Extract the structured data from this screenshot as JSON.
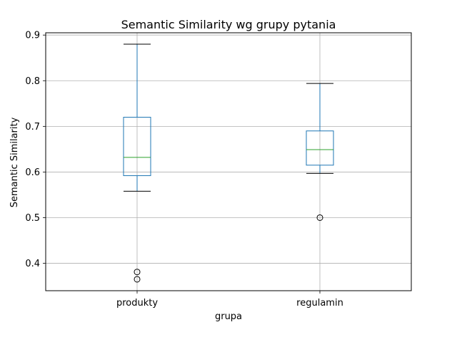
{
  "chart_data": {
    "type": "box",
    "title": "Semantic Similarity wg grupy pytania",
    "xlabel": "grupa",
    "ylabel": "Semantic Similarity",
    "ylim": [
      0.34,
      0.905
    ],
    "yticks": [
      0.4,
      0.5,
      0.6,
      0.7,
      0.8,
      0.9
    ],
    "ytick_labels": [
      "0.4",
      "0.5",
      "0.6",
      "0.7",
      "0.8",
      "0.9"
    ],
    "grid": true,
    "categories": [
      "produkty",
      "regulamin"
    ],
    "boxes": [
      {
        "category": "produkty",
        "whisker_low": 0.558,
        "q1": 0.592,
        "median": 0.632,
        "q3": 0.72,
        "whisker_high": 0.88,
        "outliers": [
          0.381,
          0.365
        ]
      },
      {
        "category": "regulamin",
        "whisker_low": 0.597,
        "q1": 0.615,
        "median": 0.649,
        "q3": 0.69,
        "whisker_high": 0.794,
        "outliers": [
          0.5
        ]
      }
    ],
    "colors": {
      "box": "#1f77b4",
      "median": "#2ca02c",
      "grid": "#b0b0b0",
      "outlier_edge": "#000000"
    }
  }
}
